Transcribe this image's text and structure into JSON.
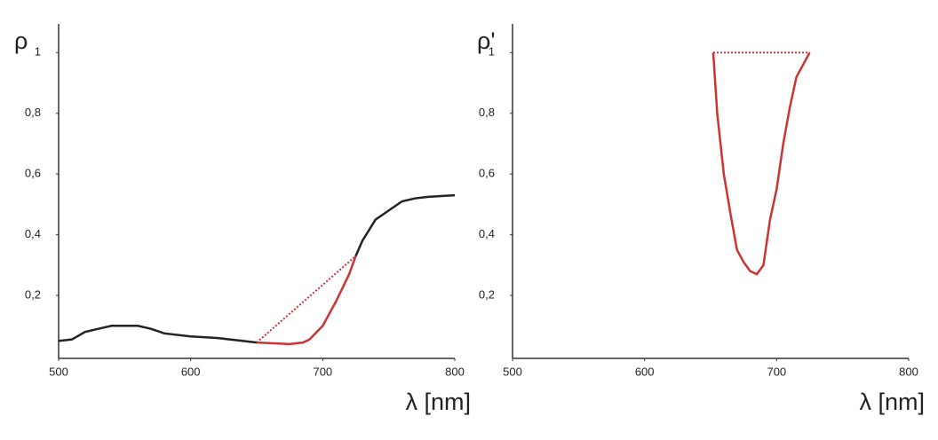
{
  "chart_data": [
    {
      "type": "line",
      "y_label": "ρ",
      "x_label": "λ [nm]",
      "xlim": [
        500,
        800
      ],
      "xticks": [
        500,
        600,
        700,
        800
      ],
      "ylim": [
        0,
        1.09
      ],
      "yticks": [
        {
          "value": 0.2,
          "label": "0,2"
        },
        {
          "value": 0.4,
          "label": "0,4"
        },
        {
          "value": 0.6,
          "label": "0,6"
        },
        {
          "value": 0.8,
          "label": "0,8"
        },
        1
      ],
      "series": [
        {
          "color": "#222222",
          "dash": false,
          "x": [
            500,
            510,
            520,
            530,
            540,
            550,
            560,
            570,
            580,
            600,
            620,
            640,
            650
          ],
          "values": [
            0.05,
            0.055,
            0.08,
            0.09,
            0.1,
            0.1,
            0.1,
            0.09,
            0.075,
            0.065,
            0.06,
            0.05,
            0.045
          ]
        },
        {
          "color": "#222222",
          "dash": false,
          "x": [
            725,
            730,
            740,
            750,
            760,
            770,
            780,
            800
          ],
          "values": [
            0.33,
            0.38,
            0.45,
            0.48,
            0.51,
            0.52,
            0.525,
            0.53
          ]
        },
        {
          "color": "#cc3333",
          "dash": false,
          "x": [
            650,
            665,
            675,
            685,
            690,
            700,
            710,
            720,
            725
          ],
          "values": [
            0.045,
            0.042,
            0.04,
            0.045,
            0.055,
            0.1,
            0.18,
            0.27,
            0.33
          ]
        },
        {
          "color": "#cc3333",
          "dash": true,
          "x": [
            650,
            725
          ],
          "values": [
            0.045,
            0.33
          ]
        }
      ]
    },
    {
      "type": "line",
      "y_label": "ρ'",
      "x_label": "λ [nm]",
      "xlim": [
        500,
        800
      ],
      "xticks": [
        500,
        600,
        700,
        800
      ],
      "ylim": [
        0,
        1.09
      ],
      "yticks": [
        {
          "value": 0.2,
          "label": "0,2"
        },
        {
          "value": 0.4,
          "label": "0,4"
        },
        {
          "value": 0.6,
          "label": "0,6"
        },
        {
          "value": 0.8,
          "label": "0,8"
        },
        1
      ],
      "series": [
        {
          "color": "#cc3333",
          "dash": false,
          "x": [
            652,
            655,
            660,
            665,
            670,
            675,
            680,
            685,
            690,
            695,
            700,
            705,
            710,
            715,
            725
          ],
          "values": [
            1.0,
            0.8,
            0.6,
            0.47,
            0.35,
            0.31,
            0.28,
            0.27,
            0.3,
            0.45,
            0.55,
            0.7,
            0.82,
            0.92,
            1.0
          ]
        },
        {
          "color": "#cc3333",
          "dash": true,
          "x": [
            652,
            725
          ],
          "values": [
            1.0,
            1.0
          ]
        }
      ]
    }
  ]
}
